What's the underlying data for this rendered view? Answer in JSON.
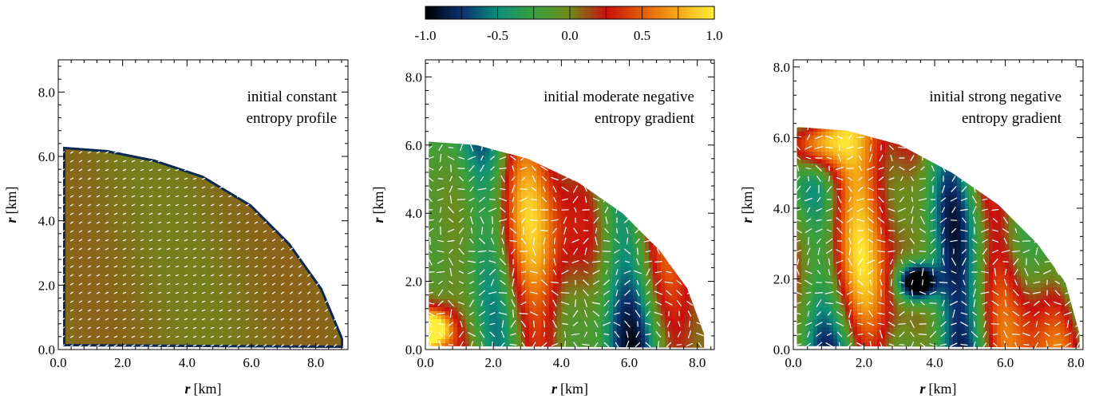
{
  "colorbar": {
    "ticks": [
      "-1.0",
      "-0.5",
      "0.0",
      "0.5",
      "1.0"
    ],
    "range": [
      -1.0,
      1.0
    ],
    "colors": [
      "#000000",
      "#0b2f6f",
      "#0d8f7a",
      "#3aa03c",
      "#6e8a1e",
      "#c8100e",
      "#e45a06",
      "#f3a818",
      "#ffef3a"
    ]
  },
  "chart_data": [
    {
      "type": "heatmap",
      "annotation": [
        "initial constant",
        "entropy profile"
      ],
      "xlabel_var": "r",
      "xlabel_unit": "[km]",
      "ylabel_var": "r",
      "ylabel_unit": "[km]",
      "xlim": [
        0,
        9.0
      ],
      "ylim": [
        0,
        9.0
      ],
      "xticks": [
        "0.0",
        "2.0",
        "4.0",
        "6.0",
        "8.0"
      ],
      "yticks": [
        "0.0",
        "2.0",
        "4.0",
        "6.0",
        "8.0"
      ],
      "boundary": [
        [
          0.15,
          0.1
        ],
        [
          0.15,
          6.3
        ],
        [
          1.5,
          6.2
        ],
        [
          3.0,
          5.9
        ],
        [
          4.5,
          5.4
        ],
        [
          6.0,
          4.5
        ],
        [
          7.2,
          3.3
        ],
        [
          8.2,
          1.9
        ],
        [
          8.85,
          0.35
        ]
      ],
      "field": "uniform",
      "base_value": 0.05
    },
    {
      "type": "heatmap",
      "annotation": [
        "initial moderate negative",
        "entropy gradient"
      ],
      "xlabel_var": "r",
      "xlabel_unit": "[km]",
      "ylabel_var": "r",
      "ylabel_unit": "[km]",
      "xlim": [
        0,
        8.5
      ],
      "ylim": [
        0,
        8.5
      ],
      "xticks": [
        "0.0",
        "2.0",
        "4.0",
        "6.0",
        "8.0"
      ],
      "yticks": [
        "0.0",
        "2.0",
        "4.0",
        "6.0",
        "8.0"
      ],
      "boundary": [
        [
          0.1,
          0.1
        ],
        [
          0.1,
          6.1
        ],
        [
          1.5,
          6.0
        ],
        [
          3.0,
          5.6
        ],
        [
          4.5,
          4.9
        ],
        [
          5.8,
          4.0
        ],
        [
          6.9,
          2.9
        ],
        [
          7.7,
          1.8
        ],
        [
          8.2,
          0.45
        ]
      ],
      "field": "turbulent",
      "base_value": 0.0
    },
    {
      "type": "heatmap",
      "annotation": [
        "initial strong negative",
        "entropy gradient"
      ],
      "xlabel_var": "r",
      "xlabel_unit": "[km]",
      "ylabel_var": "r",
      "ylabel_unit": "[km]",
      "xlim": [
        0,
        8.2
      ],
      "ylim": [
        0,
        8.2
      ],
      "xticks": [
        "0.0",
        "2.0",
        "4.0",
        "6.0",
        "8.0"
      ],
      "yticks": [
        "0.0",
        "2.0",
        "4.0",
        "6.0",
        "8.0"
      ],
      "boundary": [
        [
          0.1,
          0.1
        ],
        [
          0.1,
          6.3
        ],
        [
          1.5,
          6.2
        ],
        [
          3.0,
          5.8
        ],
        [
          4.5,
          5.0
        ],
        [
          5.8,
          4.1
        ],
        [
          6.9,
          3.0
        ],
        [
          7.7,
          1.9
        ],
        [
          8.1,
          0.45
        ]
      ],
      "field": "strong",
      "base_value": 0.0
    }
  ]
}
